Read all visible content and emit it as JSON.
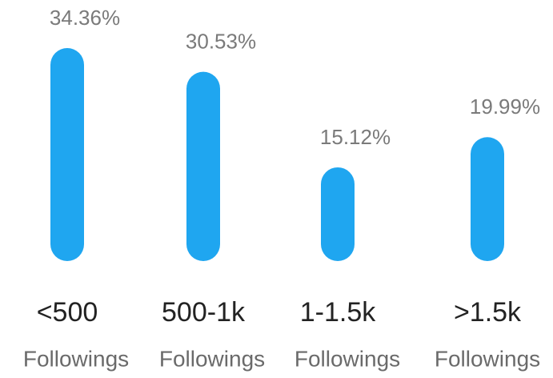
{
  "chart_data": {
    "type": "bar",
    "categories": [
      "<500",
      "500-1k",
      "1-1.5k",
      ">1.5k"
    ],
    "category_captions": [
      "Followings",
      "Followings",
      "Followings",
      "Followings"
    ],
    "values": [
      34.36,
      30.53,
      15.12,
      19.99
    ],
    "value_labels": [
      "34.36%",
      "30.53%",
      "15.12%",
      "19.99%"
    ],
    "color": "#1fa6f0"
  }
}
